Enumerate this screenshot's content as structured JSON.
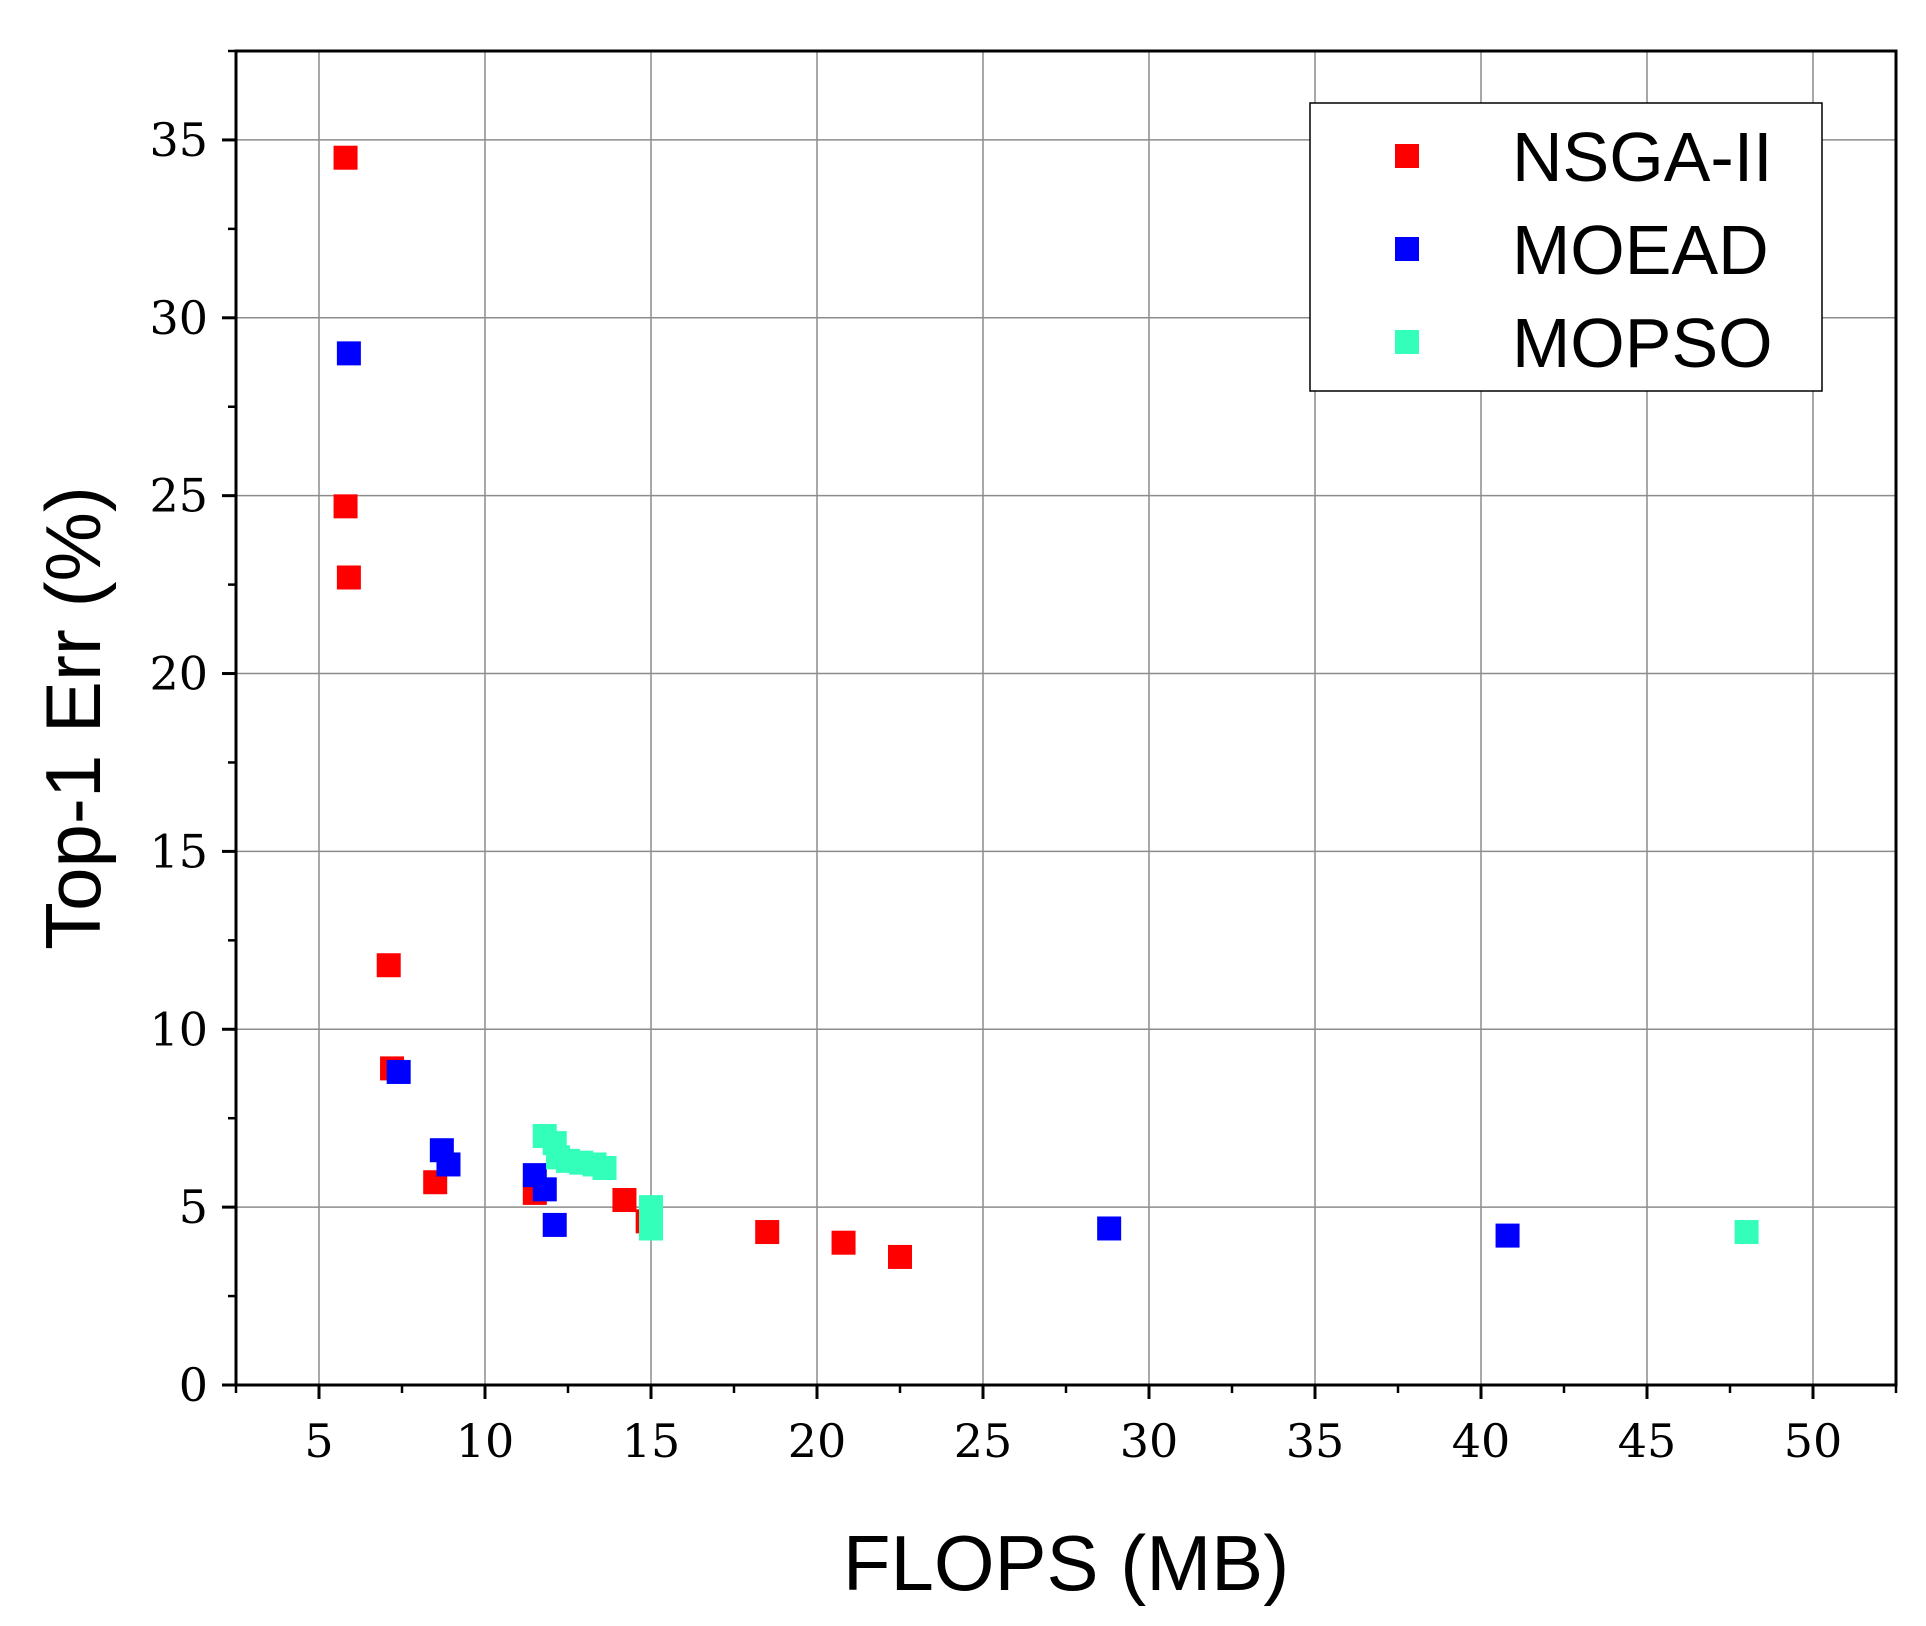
{
  "chart_data": {
    "type": "scatter",
    "title": "",
    "xlabel": "FLOPS (MB)",
    "ylabel": "Top-1 Err (%)",
    "xlim": [
      2.5,
      52.5
    ],
    "ylim": [
      0,
      37.5
    ],
    "xticks": [
      5,
      10,
      15,
      20,
      25,
      30,
      35,
      40,
      45,
      50
    ],
    "yticks": [
      0,
      5,
      10,
      15,
      20,
      25,
      30,
      35
    ],
    "grid": true,
    "legend_position": "top-right",
    "series": [
      {
        "name": "NSGA-II",
        "color": "#ff0000",
        "marker": "square",
        "points": [
          [
            5.8,
            34.5
          ],
          [
            5.8,
            24.7
          ],
          [
            5.9,
            22.7
          ],
          [
            7.1,
            11.8
          ],
          [
            7.2,
            8.9
          ],
          [
            8.5,
            5.7
          ],
          [
            11.5,
            5.4
          ],
          [
            14.2,
            5.2
          ],
          [
            14.9,
            4.6
          ],
          [
            18.5,
            4.3
          ],
          [
            20.8,
            4.0
          ],
          [
            22.5,
            3.6
          ]
        ]
      },
      {
        "name": "MOEAD",
        "color": "#0000ff",
        "marker": "square",
        "points": [
          [
            5.9,
            29.0
          ],
          [
            7.4,
            8.8
          ],
          [
            8.7,
            6.6
          ],
          [
            8.9,
            6.2
          ],
          [
            11.5,
            5.9
          ],
          [
            11.8,
            5.5
          ],
          [
            12.1,
            4.5
          ],
          [
            28.8,
            4.4
          ],
          [
            40.8,
            4.2
          ]
        ]
      },
      {
        "name": "MOPSO",
        "color": "#33ffbb",
        "marker": "square",
        "points": [
          [
            11.8,
            7.0
          ],
          [
            12.1,
            6.8
          ],
          [
            12.2,
            6.4
          ],
          [
            12.5,
            6.3
          ],
          [
            12.9,
            6.25
          ],
          [
            13.3,
            6.2
          ],
          [
            13.6,
            6.1
          ],
          [
            15.0,
            5.0
          ],
          [
            15.0,
            4.7
          ],
          [
            15.0,
            4.4
          ],
          [
            48.0,
            4.3
          ]
        ]
      }
    ]
  }
}
